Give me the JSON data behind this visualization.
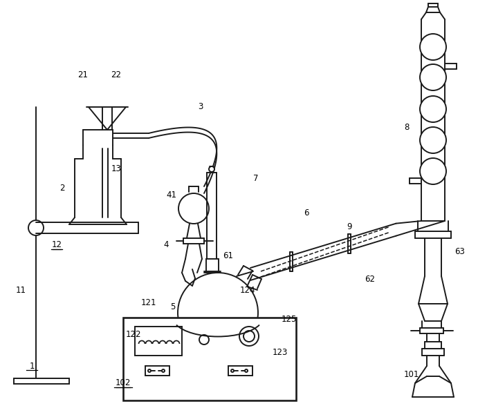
{
  "lc": "#1a1a1a",
  "lw": 1.4,
  "bg": "white"
}
